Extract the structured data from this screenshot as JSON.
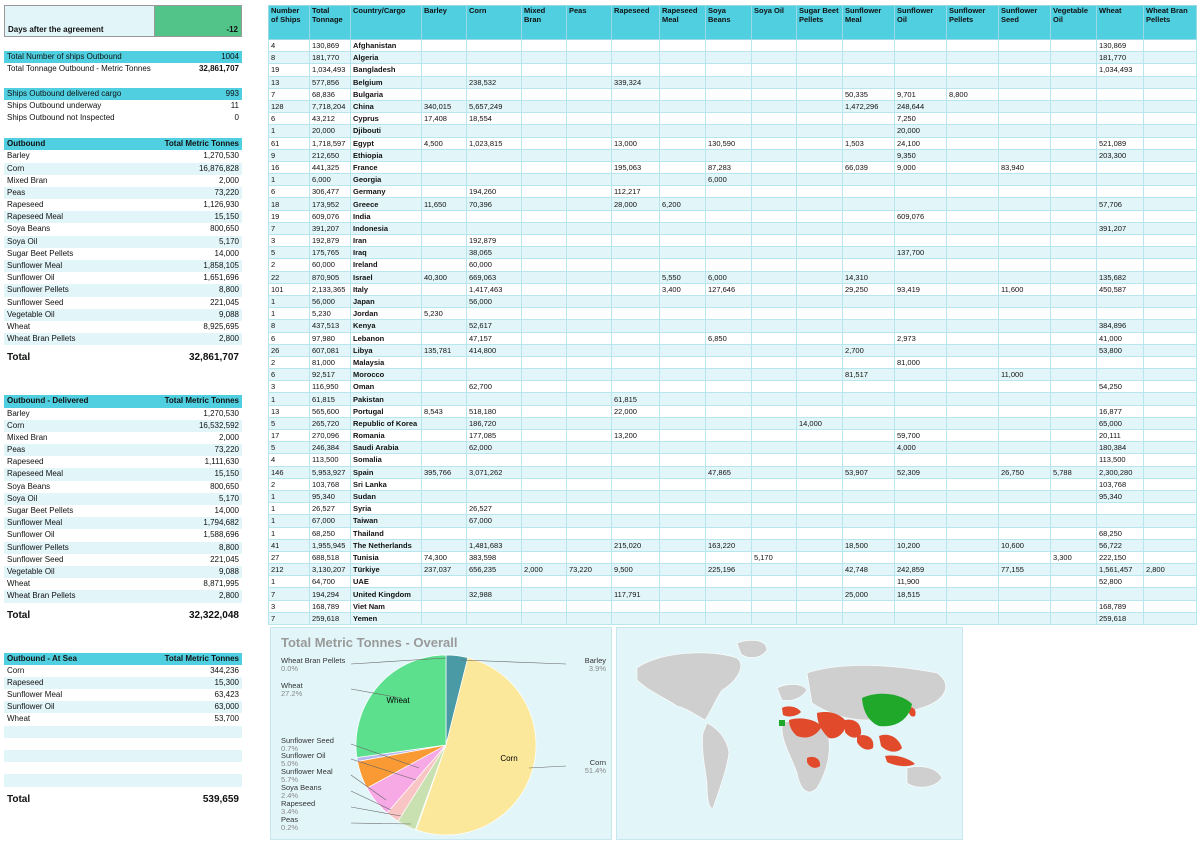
{
  "days": {
    "label": "Days after the agreement",
    "value": "-12"
  },
  "summary": [
    {
      "label": "Total Number of ships Outbound",
      "value": "1004",
      "hl": true
    },
    {
      "label": "Total Tonnage Outbound - Metric Tonnes",
      "value": "32,861,707",
      "bold": true
    },
    null,
    {
      "label": "Ships Outbound delivered cargo",
      "value": "993",
      "hl": true
    },
    {
      "label": "Ships Outbound underway",
      "value": "11"
    },
    {
      "label": "Ships Outbound not Inspected",
      "value": "0"
    }
  ],
  "outbound": {
    "header": [
      "Outbound",
      "Total Metric Tonnes"
    ],
    "rows": [
      [
        "Barley",
        "1,270,530"
      ],
      [
        "Corn",
        "16,876,828"
      ],
      [
        "Mixed Bran",
        "2,000"
      ],
      [
        "Peas",
        "73,220"
      ],
      [
        "Rapeseed",
        "1,126,930"
      ],
      [
        "Rapeseed Meal",
        "15,150"
      ],
      [
        "Soya Beans",
        "800,650"
      ],
      [
        "Soya Oil",
        "5,170"
      ],
      [
        "Sugar Beet Pellets",
        "14,000"
      ],
      [
        "Sunflower Meal",
        "1,858,105"
      ],
      [
        "Sunflower Oil",
        "1,651,696"
      ],
      [
        "Sunflower Pellets",
        "8,800"
      ],
      [
        "Sunflower Seed",
        "221,045"
      ],
      [
        "Vegetable Oil",
        "9,088"
      ],
      [
        "Wheat",
        "8,925,695"
      ],
      [
        "Wheat Bran Pellets",
        "2,800"
      ]
    ],
    "total": [
      "Total",
      "32,861,707"
    ]
  },
  "delivered": {
    "header": [
      "Outbound - Delivered",
      "Total Metric Tonnes"
    ],
    "rows": [
      [
        "Barley",
        "1,270,530"
      ],
      [
        "Corn",
        "16,532,592"
      ],
      [
        "Mixed Bran",
        "2,000"
      ],
      [
        "Peas",
        "73,220"
      ],
      [
        "Rapeseed",
        "1,111,630"
      ],
      [
        "Rapeseed Meal",
        "15,150"
      ],
      [
        "Soya Beans",
        "800,650"
      ],
      [
        "Soya Oil",
        "5,170"
      ],
      [
        "Sugar Beet Pellets",
        "14,000"
      ],
      [
        "Sunflower Meal",
        "1,794,682"
      ],
      [
        "Sunflower Oil",
        "1,588,696"
      ],
      [
        "Sunflower Pellets",
        "8,800"
      ],
      [
        "Sunflower Seed",
        "221,045"
      ],
      [
        "Vegetable Oil",
        "9,088"
      ],
      [
        "Wheat",
        "8,871,995"
      ],
      [
        "Wheat Bran Pellets",
        "2,800"
      ]
    ],
    "total": [
      "Total",
      "32,322,048"
    ]
  },
  "atsea": {
    "header": [
      "Outbound - At Sea",
      "Total Metric Tonnes"
    ],
    "rows": [
      [
        "Corn",
        "344,236"
      ],
      [
        "Rapeseed",
        "15,300"
      ],
      [
        "Sunflower Meal",
        "63,423"
      ],
      [
        "Sunflower Oil",
        "63,000"
      ],
      [
        "Wheat",
        "53,700"
      ],
      [
        "",
        ""
      ],
      [
        "",
        ""
      ],
      [
        "",
        ""
      ],
      [
        "",
        ""
      ],
      [
        "",
        ""
      ]
    ],
    "total": [
      "Total",
      "539,659"
    ]
  },
  "table": {
    "headers": [
      "Number of Ships",
      "Total Tonnage",
      "Country/Cargo",
      "Barley",
      "Corn",
      "Mixed Bran",
      "Peas",
      "Rapeseed",
      "Rapeseed Meal",
      "Soya Beans",
      "Soya Oil",
      "Sugar Beet Pellets",
      "Sunflower Meal",
      "Sunflower Oil",
      "Sunflower Pellets",
      "Sunflower Seed",
      "Vegetable Oil",
      "Wheat",
      "Wheat Bran Pellets"
    ],
    "rows": [
      [
        "4",
        "130,869",
        "Afghanistan",
        "",
        "",
        "",
        "",
        "",
        "",
        "",
        "",
        "",
        "",
        "",
        "",
        "",
        "",
        "130,869",
        ""
      ],
      [
        "8",
        "181,770",
        "Algeria",
        "",
        "",
        "",
        "",
        "",
        "",
        "",
        "",
        "",
        "",
        "",
        "",
        "",
        "",
        "181,770",
        ""
      ],
      [
        "19",
        "1,034,493",
        "Bangladesh",
        "",
        "",
        "",
        "",
        "",
        "",
        "",
        "",
        "",
        "",
        "",
        "",
        "",
        "",
        "1,034,493",
        ""
      ],
      [
        "13",
        "577,856",
        "Belgium",
        "",
        "238,532",
        "",
        "",
        "339,324",
        "",
        "",
        "",
        "",
        "",
        "",
        "",
        "",
        "",
        "",
        ""
      ],
      [
        "7",
        "68,836",
        "Bulgaria",
        "",
        "",
        "",
        "",
        "",
        "",
        "",
        "",
        "",
        "50,335",
        "9,701",
        "8,800",
        "",
        "",
        "",
        ""
      ],
      [
        "128",
        "7,718,204",
        "China",
        "340,015",
        "5,657,249",
        "",
        "",
        "",
        "",
        "",
        "",
        "",
        "1,472,296",
        "248,644",
        "",
        "",
        "",
        "",
        ""
      ],
      [
        "6",
        "43,212",
        "Cyprus",
        "17,408",
        "18,554",
        "",
        "",
        "",
        "",
        "",
        "",
        "",
        "",
        "7,250",
        "",
        "",
        "",
        "",
        ""
      ],
      [
        "1",
        "20,000",
        "Djibouti",
        "",
        "",
        "",
        "",
        "",
        "",
        "",
        "",
        "",
        "",
        "20,000",
        "",
        "",
        "",
        "",
        ""
      ],
      [
        "61",
        "1,718,597",
        "Egypt",
        "4,500",
        "1,023,815",
        "",
        "",
        "13,000",
        "",
        "130,590",
        "",
        "",
        "1,503",
        "24,100",
        "",
        "",
        "",
        "521,089",
        ""
      ],
      [
        "9",
        "212,650",
        "Ethiopia",
        "",
        "",
        "",
        "",
        "",
        "",
        "",
        "",
        "",
        "",
        "9,350",
        "",
        "",
        "",
        "203,300",
        ""
      ],
      [
        "16",
        "441,325",
        "France",
        "",
        "",
        "",
        "",
        "195,063",
        "",
        "87,283",
        "",
        "",
        "66,039",
        "9,000",
        "",
        "83,940",
        "",
        "",
        ""
      ],
      [
        "1",
        "6,000",
        "Georgia",
        "",
        "",
        "",
        "",
        "",
        "",
        "6,000",
        "",
        "",
        "",
        "",
        "",
        "",
        "",
        "",
        ""
      ],
      [
        "6",
        "306,477",
        "Germany",
        "",
        "194,260",
        "",
        "",
        "112,217",
        "",
        "",
        "",
        "",
        "",
        "",
        "",
        "",
        "",
        "",
        ""
      ],
      [
        "18",
        "173,952",
        "Greece",
        "11,650",
        "70,396",
        "",
        "",
        "28,000",
        "6,200",
        "",
        "",
        "",
        "",
        "",
        "",
        "",
        "",
        "57,706",
        ""
      ],
      [
        "19",
        "609,076",
        "India",
        "",
        "",
        "",
        "",
        "",
        "",
        "",
        "",
        "",
        "",
        "609,076",
        "",
        "",
        "",
        "",
        ""
      ],
      [
        "7",
        "391,207",
        "Indonesia",
        "",
        "",
        "",
        "",
        "",
        "",
        "",
        "",
        "",
        "",
        "",
        "",
        "",
        "",
        "391,207",
        ""
      ],
      [
        "3",
        "192,879",
        "Iran",
        "",
        "192,879",
        "",
        "",
        "",
        "",
        "",
        "",
        "",
        "",
        "",
        "",
        "",
        "",
        "",
        ""
      ],
      [
        "5",
        "175,765",
        "Iraq",
        "",
        "38,065",
        "",
        "",
        "",
        "",
        "",
        "",
        "",
        "",
        "137,700",
        "",
        "",
        "",
        "",
        ""
      ],
      [
        "2",
        "60,000",
        "Ireland",
        "",
        "60,000",
        "",
        "",
        "",
        "",
        "",
        "",
        "",
        "",
        "",
        "",
        "",
        "",
        "",
        ""
      ],
      [
        "22",
        "870,905",
        "Israel",
        "40,300",
        "669,063",
        "",
        "",
        "",
        "5,550",
        "6,000",
        "",
        "",
        "14,310",
        "",
        "",
        "",
        "",
        "135,682",
        ""
      ],
      [
        "101",
        "2,133,365",
        "Italy",
        "",
        "1,417,463",
        "",
        "",
        "",
        "3,400",
        "127,646",
        "",
        "",
        "29,250",
        "93,419",
        "",
        "11,600",
        "",
        "450,587",
        ""
      ],
      [
        "1",
        "56,000",
        "Japan",
        "",
        "56,000",
        "",
        "",
        "",
        "",
        "",
        "",
        "",
        "",
        "",
        "",
        "",
        "",
        "",
        ""
      ],
      [
        "1",
        "5,230",
        "Jordan",
        "5,230",
        "",
        "",
        "",
        "",
        "",
        "",
        "",
        "",
        "",
        "",
        "",
        "",
        "",
        "",
        ""
      ],
      [
        "8",
        "437,513",
        "Kenya",
        "",
        "52,617",
        "",
        "",
        "",
        "",
        "",
        "",
        "",
        "",
        "",
        "",
        "",
        "",
        "384,896",
        ""
      ],
      [
        "6",
        "97,980",
        "Lebanon",
        "",
        "47,157",
        "",
        "",
        "",
        "",
        "6,850",
        "",
        "",
        "",
        "2,973",
        "",
        "",
        "",
        "41,000",
        ""
      ],
      [
        "26",
        "607,081",
        "Libya",
        "135,781",
        "414,800",
        "",
        "",
        "",
        "",
        "",
        "",
        "",
        "2,700",
        "",
        "",
        "",
        "",
        "53,800",
        ""
      ],
      [
        "2",
        "81,000",
        "Malaysia",
        "",
        "",
        "",
        "",
        "",
        "",
        "",
        "",
        "",
        "",
        "81,000",
        "",
        "",
        "",
        "",
        ""
      ],
      [
        "6",
        "92,517",
        "Morocco",
        "",
        "",
        "",
        "",
        "",
        "",
        "",
        "",
        "",
        "81,517",
        "",
        "",
        "11,000",
        "",
        "",
        ""
      ],
      [
        "3",
        "116,950",
        "Oman",
        "",
        "62,700",
        "",
        "",
        "",
        "",
        "",
        "",
        "",
        "",
        "",
        "",
        "",
        "",
        "54,250",
        ""
      ],
      [
        "1",
        "61,815",
        "Pakistan",
        "",
        "",
        "",
        "",
        "61,815",
        "",
        "",
        "",
        "",
        "",
        "",
        "",
        "",
        "",
        "",
        ""
      ],
      [
        "13",
        "565,600",
        "Portugal",
        "8,543",
        "518,180",
        "",
        "",
        "22,000",
        "",
        "",
        "",
        "",
        "",
        "",
        "",
        "",
        "",
        "16,877",
        ""
      ],
      [
        "5",
        "265,720",
        "Republic of Korea",
        "",
        "186,720",
        "",
        "",
        "",
        "",
        "",
        "",
        "14,000",
        "",
        "",
        "",
        "",
        "",
        "65,000",
        ""
      ],
      [
        "17",
        "270,096",
        "Romania",
        "",
        "177,085",
        "",
        "",
        "13,200",
        "",
        "",
        "",
        "",
        "",
        "59,700",
        "",
        "",
        "",
        "20,111",
        ""
      ],
      [
        "5",
        "246,384",
        "Saudi Arabia",
        "",
        "62,000",
        "",
        "",
        "",
        "",
        "",
        "",
        "",
        "",
        "4,000",
        "",
        "",
        "",
        "180,384",
        ""
      ],
      [
        "4",
        "113,500",
        "Somalia",
        "",
        "",
        "",
        "",
        "",
        "",
        "",
        "",
        "",
        "",
        "",
        "",
        "",
        "",
        "113,500",
        ""
      ],
      [
        "146",
        "5,953,927",
        "Spain",
        "395,766",
        "3,071,262",
        "",
        "",
        "",
        "",
        "47,865",
        "",
        "",
        "53,907",
        "52,309",
        "",
        "26,750",
        "5,788",
        "2,300,280",
        ""
      ],
      [
        "2",
        "103,768",
        "Sri Lanka",
        "",
        "",
        "",
        "",
        "",
        "",
        "",
        "",
        "",
        "",
        "",
        "",
        "",
        "",
        "103,768",
        ""
      ],
      [
        "1",
        "95,340",
        "Sudan",
        "",
        "",
        "",
        "",
        "",
        "",
        "",
        "",
        "",
        "",
        "",
        "",
        "",
        "",
        "95,340",
        ""
      ],
      [
        "1",
        "26,527",
        "Syria",
        "",
        "26,527",
        "",
        "",
        "",
        "",
        "",
        "",
        "",
        "",
        "",
        "",
        "",
        "",
        "",
        ""
      ],
      [
        "1",
        "67,000",
        "Taiwan",
        "",
        "67,000",
        "",
        "",
        "",
        "",
        "",
        "",
        "",
        "",
        "",
        "",
        "",
        "",
        "",
        ""
      ],
      [
        "1",
        "68,250",
        "Thailand",
        "",
        "",
        "",
        "",
        "",
        "",
        "",
        "",
        "",
        "",
        "",
        "",
        "",
        "",
        "68,250",
        ""
      ],
      [
        "41",
        "1,955,945",
        "The Netherlands",
        "",
        "1,481,683",
        "",
        "",
        "215,020",
        "",
        "163,220",
        "",
        "",
        "18,500",
        "10,200",
        "",
        "10,600",
        "",
        "56,722",
        ""
      ],
      [
        "27",
        "688,518",
        "Tunisia",
        "74,300",
        "383,598",
        "",
        "",
        "",
        "",
        "",
        "5,170",
        "",
        "",
        "",
        "",
        "",
        "3,300",
        "222,150",
        ""
      ],
      [
        "212",
        "3,130,207",
        "Türkiye",
        "237,037",
        "656,235",
        "2,000",
        "73,220",
        "9,500",
        "",
        "225,196",
        "",
        "",
        "42,748",
        "242,859",
        "",
        "77,155",
        "",
        "1,561,457",
        "2,800"
      ],
      [
        "1",
        "64,700",
        "UAE",
        "",
        "",
        "",
        "",
        "",
        "",
        "",
        "",
        "",
        "",
        "11,900",
        "",
        "",
        "",
        "52,800",
        ""
      ],
      [
        "7",
        "194,294",
        "United Kingdom",
        "",
        "32,988",
        "",
        "",
        "117,791",
        "",
        "",
        "",
        "",
        "25,000",
        "18,515",
        "",
        "",
        "",
        "",
        ""
      ],
      [
        "3",
        "168,789",
        "Viet Nam",
        "",
        "",
        "",
        "",
        "",
        "",
        "",
        "",
        "",
        "",
        "",
        "",
        "",
        "",
        "168,789",
        ""
      ],
      [
        "7",
        "259,618",
        "Yemen",
        "",
        "",
        "",
        "",
        "",
        "",
        "",
        "",
        "",
        "",
        "",
        "",
        "",
        "",
        "259,618",
        ""
      ]
    ]
  },
  "pie": {
    "title": "Total Metric Tonnes - Overall",
    "slice_labels": {
      "wheat": "Wheat",
      "corn": "Corn"
    },
    "legend": [
      [
        "Wheat Bran Pellets",
        "0.0%"
      ],
      [
        "Wheat",
        "27.2%"
      ],
      [
        "Sunflower Seed",
        "0.7%"
      ],
      [
        "Sunflower Oil",
        "5.0%"
      ],
      [
        "Sunflower Meal",
        "5.7%"
      ],
      [
        "Soya Beans",
        "2.4%"
      ],
      [
        "Rapeseed",
        "3.4%"
      ],
      [
        "Peas",
        "0.2%"
      ],
      [
        "Barley",
        "3.9%"
      ],
      [
        "Corn",
        "51.4%"
      ]
    ]
  },
  "chart_data": {
    "type": "pie",
    "title": "Total Metric Tonnes - Overall",
    "slices": [
      {
        "label": "Barley",
        "value": 3.9,
        "color": "#4a9aa5"
      },
      {
        "label": "Corn",
        "value": 51.4,
        "color": "#fbe89a"
      },
      {
        "label": "Peas",
        "value": 0.2,
        "color": "#cde8a8"
      },
      {
        "label": "Rapeseed",
        "value": 3.4,
        "color": "#c9e0b0"
      },
      {
        "label": "Soya Beans",
        "value": 2.4,
        "color": "#f8c4c4"
      },
      {
        "label": "Sunflower Meal",
        "value": 5.7,
        "color": "#f7a9e6"
      },
      {
        "label": "Sunflower Oil",
        "value": 5.0,
        "color": "#fa9a35"
      },
      {
        "label": "Sunflower Seed",
        "value": 0.7,
        "color": "#b7b7ee"
      },
      {
        "label": "Wheat",
        "value": 27.2,
        "color": "#5ce08e"
      },
      {
        "label": "Wheat Bran Pellets",
        "value": 0.0,
        "color": "#a5d07a"
      }
    ]
  },
  "colors": {
    "header": "#4fcfe0",
    "alt": "#e2f6fa",
    "days": "#52c48a",
    "map_green": "#1fa82a",
    "map_red": "#e24a2c"
  }
}
